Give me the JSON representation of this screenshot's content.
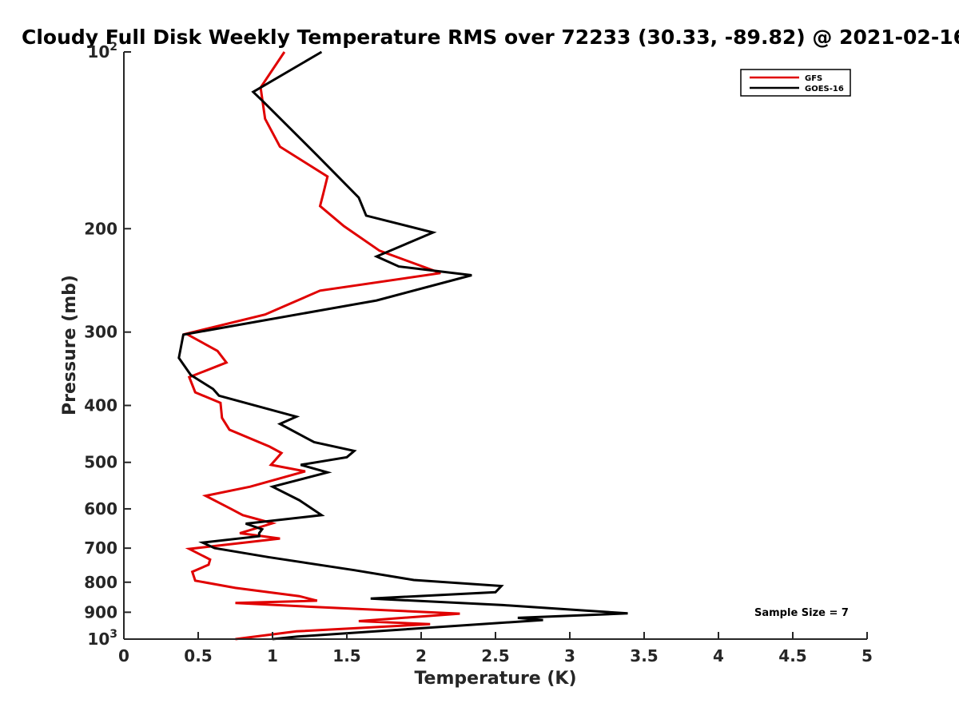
{
  "chart_data": {
    "type": "line",
    "title": "Cloudy Full Disk Weekly Temperature RMS over 72233 (30.33, -89.82) @ 2021-02-16",
    "xlabel": "Temperature (K)",
    "ylabel": "Pressure (mb)",
    "xlim": [
      0,
      5
    ],
    "ylim": [
      1000,
      100
    ],
    "yscale": "log",
    "grid": false,
    "legend_position": "top-right",
    "x_ticks": [
      "0",
      "0.5",
      "1",
      "1.5",
      "2",
      "2.5",
      "3",
      "3.5",
      "4",
      "4.5",
      "5"
    ],
    "y_ticks": [
      {
        "value": 100,
        "base": "10",
        "exp": "2"
      },
      {
        "value": 200,
        "label": "200"
      },
      {
        "value": 300,
        "label": "300"
      },
      {
        "value": 400,
        "label": "400"
      },
      {
        "value": 500,
        "label": "500"
      },
      {
        "value": 600,
        "label": "600"
      },
      {
        "value": 700,
        "label": "700"
      },
      {
        "value": 800,
        "label": "800"
      },
      {
        "value": 900,
        "label": "900"
      },
      {
        "value": 1000,
        "base": "10",
        "exp": "3"
      }
    ],
    "series": [
      {
        "name": "GFS",
        "color": "#e00000",
        "points": [
          [
            1.08,
            100
          ],
          [
            0.92,
            115
          ],
          [
            0.95,
            130
          ],
          [
            1.05,
            145
          ],
          [
            1.37,
            163
          ],
          [
            1.34,
            175
          ],
          [
            1.32,
            183
          ],
          [
            1.48,
            198
          ],
          [
            1.72,
            218
          ],
          [
            2.13,
            238
          ],
          [
            1.32,
            255
          ],
          [
            0.95,
            280
          ],
          [
            0.42,
            302
          ],
          [
            0.63,
            323
          ],
          [
            0.69,
            338
          ],
          [
            0.44,
            358
          ],
          [
            0.48,
            380
          ],
          [
            0.65,
            396
          ],
          [
            0.66,
            420
          ],
          [
            0.71,
            440
          ],
          [
            0.98,
            470
          ],
          [
            1.06,
            482
          ],
          [
            0.99,
            505
          ],
          [
            1.22,
            518
          ],
          [
            0.85,
            550
          ],
          [
            0.55,
            570
          ],
          [
            0.72,
            600
          ],
          [
            0.8,
            615
          ],
          [
            1.0,
            635
          ],
          [
            0.78,
            660
          ],
          [
            1.05,
            674
          ],
          [
            0.44,
            702
          ],
          [
            0.58,
            732
          ],
          [
            0.57,
            747
          ],
          [
            0.46,
            768
          ],
          [
            0.48,
            795
          ],
          [
            0.75,
            818
          ],
          [
            1.18,
            845
          ],
          [
            1.3,
            860
          ],
          [
            0.75,
            868
          ],
          [
            1.3,
            882
          ],
          [
            2.26,
            905
          ],
          [
            1.58,
            932
          ],
          [
            2.06,
            943
          ],
          [
            1.16,
            970
          ],
          [
            0.75,
            1000
          ]
        ]
      },
      {
        "name": "GOES-16",
        "color": "#000000",
        "points": [
          [
            1.33,
            100
          ],
          [
            0.87,
            117
          ],
          [
            0.93,
            121
          ],
          [
            1.3,
            150
          ],
          [
            1.58,
            177
          ],
          [
            1.63,
            190
          ],
          [
            2.08,
            203
          ],
          [
            1.7,
            223
          ],
          [
            1.85,
            232
          ],
          [
            2.34,
            240
          ],
          [
            1.7,
            265
          ],
          [
            0.4,
            303
          ],
          [
            0.37,
            332
          ],
          [
            0.45,
            355
          ],
          [
            0.6,
            375
          ],
          [
            0.64,
            385
          ],
          [
            1.16,
            418
          ],
          [
            1.05,
            430
          ],
          [
            1.28,
            462
          ],
          [
            1.55,
            478
          ],
          [
            1.5,
            490
          ],
          [
            1.19,
            505
          ],
          [
            1.37,
            520
          ],
          [
            1.0,
            550
          ],
          [
            1.18,
            580
          ],
          [
            1.33,
            615
          ],
          [
            0.82,
            636
          ],
          [
            0.93,
            650
          ],
          [
            0.91,
            660
          ],
          [
            0.91,
            668
          ],
          [
            0.53,
            685
          ],
          [
            0.61,
            700
          ],
          [
            0.97,
            725
          ],
          [
            1.55,
            763
          ],
          [
            1.95,
            793
          ],
          [
            2.54,
            812
          ],
          [
            2.5,
            832
          ],
          [
            1.66,
            853
          ],
          [
            2.55,
            875
          ],
          [
            3.39,
            904
          ],
          [
            2.65,
            920
          ],
          [
            2.82,
            928
          ],
          [
            1.17,
            990
          ],
          [
            1.0,
            1000
          ]
        ]
      }
    ],
    "annotations": [
      {
        "text": "Sample Size = 7",
        "x": 3.97,
        "y": 900
      }
    ]
  }
}
